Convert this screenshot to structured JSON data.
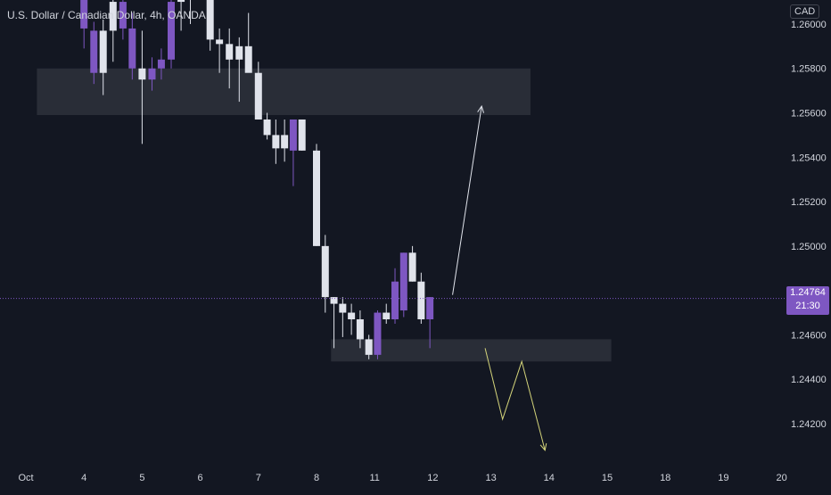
{
  "header": {
    "title": "U.S. Dollar / Canadian Dollar, 4h, OANDA"
  },
  "price_axis": {
    "currency": "CAD",
    "current_price": "1.24764",
    "countdown": "21:30"
  },
  "colors": {
    "background": "#131722",
    "bull_candle": "#e0e3eb",
    "bear_candle": "#7e57c2",
    "zone_fill": "#2a2e39",
    "up_arrow": "#e0e3eb",
    "down_path": "#d4d47a",
    "current_price_line": "#7e57c2",
    "axis_text": "#d1d4dc"
  },
  "chart_data": {
    "type": "candlestick",
    "title": "U.S. Dollar / Canadian Dollar, 4h, OANDA",
    "yaxis": {
      "ticks": [
        "1.24200",
        "1.24400",
        "1.24600",
        "1.24800",
        "1.25000",
        "1.25200",
        "1.25400",
        "1.25600",
        "1.25800",
        "1.26000"
      ],
      "range": [
        1.2387,
        1.2622
      ],
      "position": "right"
    },
    "xaxis": {
      "ticks": [
        "Oct",
        "4",
        "5",
        "6",
        "7",
        "8",
        "11",
        "12",
        "13",
        "14",
        "15",
        "18",
        "19",
        "20"
      ],
      "range": [
        0,
        13
      ]
    },
    "candles": [
      {
        "x": 1.0,
        "o": 1.2611,
        "h": 1.262,
        "l": 1.2589,
        "c": 1.2598,
        "dir": "bear"
      },
      {
        "x": 1.17,
        "o": 1.2597,
        "h": 1.2601,
        "l": 1.2573,
        "c": 1.2578,
        "dir": "bear"
      },
      {
        "x": 1.33,
        "o": 1.2578,
        "h": 1.2602,
        "l": 1.2568,
        "c": 1.2597,
        "dir": "bull"
      },
      {
        "x": 1.5,
        "o": 1.2597,
        "h": 1.262,
        "l": 1.2583,
        "c": 1.261,
        "dir": "bull"
      },
      {
        "x": 1.67,
        "o": 1.261,
        "h": 1.2622,
        "l": 1.2593,
        "c": 1.2598,
        "dir": "bear"
      },
      {
        "x": 1.83,
        "o": 1.2598,
        "h": 1.2605,
        "l": 1.2575,
        "c": 1.258,
        "dir": "bear"
      },
      {
        "x": 2.0,
        "o": 1.258,
        "h": 1.2597,
        "l": 1.2546,
        "c": 1.2575,
        "dir": "bull"
      },
      {
        "x": 2.17,
        "o": 1.2575,
        "h": 1.2585,
        "l": 1.257,
        "c": 1.258,
        "dir": "bear"
      },
      {
        "x": 2.33,
        "o": 1.258,
        "h": 1.2589,
        "l": 1.2575,
        "c": 1.2584,
        "dir": "bear"
      },
      {
        "x": 2.5,
        "o": 1.2584,
        "h": 1.2622,
        "l": 1.258,
        "c": 1.261,
        "dir": "bear"
      },
      {
        "x": 2.67,
        "o": 1.261,
        "h": 1.2622,
        "l": 1.2597,
        "c": 1.2622,
        "dir": "bull"
      },
      {
        "x": 2.83,
        "o": 1.2615,
        "h": 1.2622,
        "l": 1.26,
        "c": 1.2622,
        "dir": "bull"
      },
      {
        "x": 3.17,
        "o": 1.2622,
        "h": 1.2622,
        "l": 1.2588,
        "c": 1.2593,
        "dir": "bull"
      },
      {
        "x": 3.33,
        "o": 1.2593,
        "h": 1.2598,
        "l": 1.2578,
        "c": 1.2591,
        "dir": "bull"
      },
      {
        "x": 3.5,
        "o": 1.2591,
        "h": 1.2598,
        "l": 1.2571,
        "c": 1.2584,
        "dir": "bull"
      },
      {
        "x": 3.67,
        "o": 1.2584,
        "h": 1.2594,
        "l": 1.2565,
        "c": 1.259,
        "dir": "bull"
      },
      {
        "x": 3.83,
        "o": 1.259,
        "h": 1.2605,
        "l": 1.258,
        "c": 1.2578,
        "dir": "bull"
      },
      {
        "x": 4.0,
        "o": 1.2578,
        "h": 1.2583,
        "l": 1.2557,
        "c": 1.2557,
        "dir": "bull"
      },
      {
        "x": 4.15,
        "o": 1.2557,
        "h": 1.256,
        "l": 1.2548,
        "c": 1.255,
        "dir": "bull"
      },
      {
        "x": 4.3,
        "o": 1.255,
        "h": 1.2557,
        "l": 1.2537,
        "c": 1.2544,
        "dir": "bull"
      },
      {
        "x": 4.45,
        "o": 1.2544,
        "h": 1.2557,
        "l": 1.2538,
        "c": 1.255,
        "dir": "bull"
      },
      {
        "x": 4.6,
        "o": 1.2543,
        "h": 1.2557,
        "l": 1.2527,
        "c": 1.2557,
        "dir": "bear"
      },
      {
        "x": 4.75,
        "o": 1.2557,
        "h": 1.2557,
        "l": 1.2543,
        "c": 1.2543,
        "dir": "bull"
      },
      {
        "x": 5.0,
        "o": 1.2543,
        "h": 1.2546,
        "l": 1.25,
        "c": 1.25,
        "dir": "bull"
      },
      {
        "x": 5.15,
        "o": 1.25,
        "h": 1.2505,
        "l": 1.247,
        "c": 1.2477,
        "dir": "bull"
      },
      {
        "x": 5.3,
        "o": 1.2477,
        "h": 1.2477,
        "l": 1.2454,
        "c": 1.2474,
        "dir": "bull"
      },
      {
        "x": 5.45,
        "o": 1.2474,
        "h": 1.2477,
        "l": 1.2459,
        "c": 1.247,
        "dir": "bull"
      },
      {
        "x": 5.6,
        "o": 1.247,
        "h": 1.2474,
        "l": 1.246,
        "c": 1.2467,
        "dir": "bull"
      },
      {
        "x": 5.75,
        "o": 1.2467,
        "h": 1.2471,
        "l": 1.2454,
        "c": 1.2458,
        "dir": "bull"
      },
      {
        "x": 5.9,
        "o": 1.2458,
        "h": 1.246,
        "l": 1.2449,
        "c": 1.2451,
        "dir": "bull"
      },
      {
        "x": 6.05,
        "o": 1.2451,
        "h": 1.2471,
        "l": 1.2449,
        "c": 1.247,
        "dir": "bear"
      },
      {
        "x": 6.2,
        "o": 1.247,
        "h": 1.2474,
        "l": 1.2465,
        "c": 1.2467,
        "dir": "bull"
      },
      {
        "x": 6.35,
        "o": 1.2467,
        "h": 1.249,
        "l": 1.2465,
        "c": 1.2484,
        "dir": "bear"
      },
      {
        "x": 6.5,
        "o": 1.2471,
        "h": 1.2497,
        "l": 1.2468,
        "c": 1.2497,
        "dir": "bear"
      },
      {
        "x": 6.65,
        "o": 1.2497,
        "h": 1.25,
        "l": 1.2484,
        "c": 1.2484,
        "dir": "bull"
      },
      {
        "x": 6.8,
        "o": 1.2484,
        "h": 1.2488,
        "l": 1.2465,
        "c": 1.2467,
        "dir": "bull"
      },
      {
        "x": 6.95,
        "o": 1.2467,
        "h": 1.2477,
        "l": 1.2454,
        "c": 1.2477,
        "dir": "bear"
      }
    ],
    "zones": [
      {
        "name": "resistance-zone",
        "x0": 0.19,
        "x1": 8.68,
        "y_top": 1.258,
        "y_bottom": 1.2559
      },
      {
        "name": "support-zone",
        "x0": 5.25,
        "x1": 10.07,
        "y_top": 1.2458,
        "y_bottom": 1.2448
      }
    ],
    "projections": {
      "up_arrow": [
        [
          7.34,
          1.2478
        ],
        [
          7.84,
          1.2563
        ]
      ],
      "down_path": [
        [
          7.9,
          1.2454
        ],
        [
          8.2,
          1.2422
        ],
        [
          8.53,
          1.2448
        ],
        [
          8.93,
          1.2408
        ]
      ]
    },
    "current_price": 1.24764
  }
}
